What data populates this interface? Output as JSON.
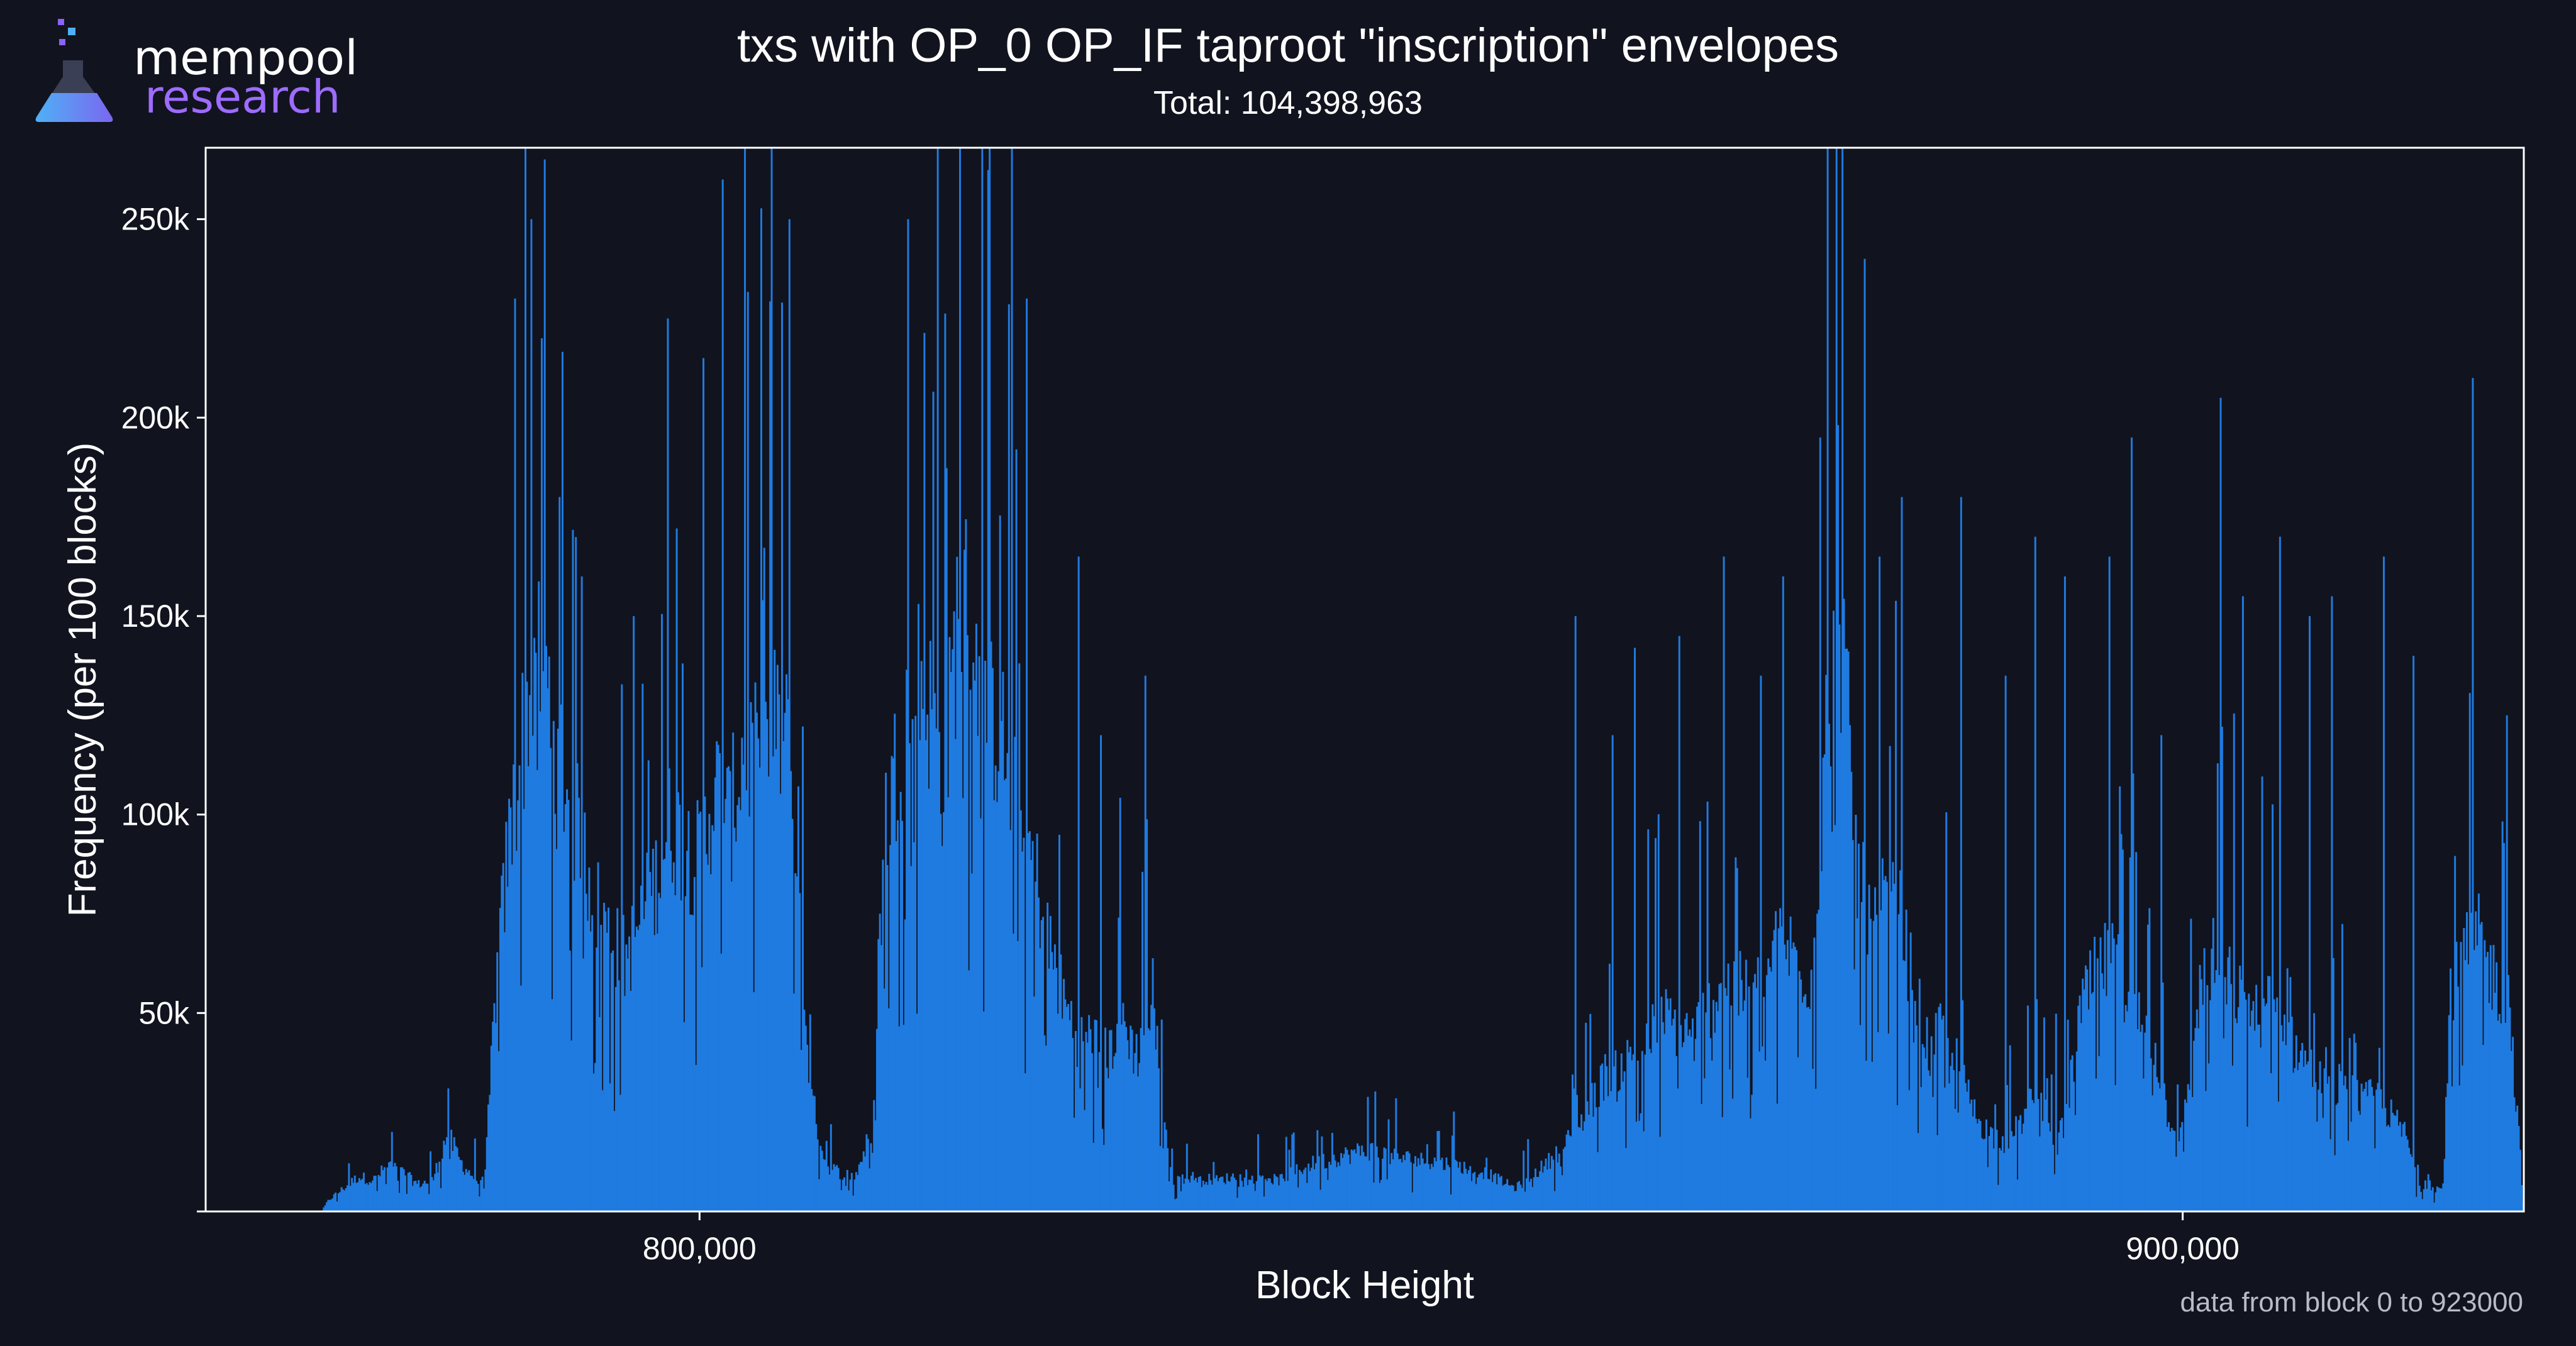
{
  "brand": {
    "line1": "mempool",
    "line2": "research"
  },
  "chart_data": {
    "type": "bar",
    "title": "txs with OP_0 OP_IF taproot \"inscription\" envelopes",
    "subtitle": "Total: 104,398,963",
    "xlabel": "Block Height",
    "ylabel": "Frequency (per 100 blocks)",
    "xlim": [
      766700,
      923000
    ],
    "ylim": [
      0,
      268000
    ],
    "xticks": [
      800000,
      900000
    ],
    "xtick_labels": [
      "800,000",
      "900,000"
    ],
    "yticks": [
      50000,
      100000,
      150000,
      200000,
      250000
    ],
    "ytick_labels": [
      "50k",
      "100k",
      "150k",
      "200k",
      "250k"
    ],
    "grid": false,
    "bin_width": 100,
    "color": "#1f7be0",
    "series_points": [
      [
        766700,
        0
      ],
      [
        774500,
        0
      ],
      [
        775000,
        3000
      ],
      [
        776000,
        6000
      ],
      [
        777000,
        9000
      ],
      [
        778000,
        8000
      ],
      [
        779000,
        12000
      ],
      [
        780000,
        10000
      ],
      [
        781000,
        7000
      ],
      [
        782000,
        8000
      ],
      [
        783000,
        20000
      ],
      [
        784000,
        12000
      ],
      [
        785500,
        6000
      ],
      [
        786200,
        55000
      ],
      [
        787000,
        90000
      ],
      [
        788000,
        120000
      ],
      [
        789000,
        150000
      ],
      [
        790000,
        130000
      ],
      [
        791000,
        110000
      ],
      [
        792000,
        95000
      ],
      [
        793000,
        80000
      ],
      [
        794000,
        70000
      ],
      [
        795000,
        65000
      ],
      [
        796000,
        75000
      ],
      [
        797000,
        85000
      ],
      [
        798000,
        100000
      ],
      [
        799000,
        95000
      ],
      [
        800000,
        90000
      ],
      [
        801000,
        110000
      ],
      [
        802000,
        100000
      ],
      [
        803000,
        120000
      ],
      [
        804000,
        115000
      ],
      [
        805000,
        125000
      ],
      [
        806000,
        120000
      ],
      [
        806800,
        70000
      ],
      [
        807500,
        30000
      ],
      [
        808500,
        12000
      ],
      [
        809500,
        10000
      ],
      [
        810500,
        9000
      ],
      [
        811500,
        20000
      ],
      [
        812500,
        100000
      ],
      [
        813500,
        120000
      ],
      [
        814500,
        140000
      ],
      [
        815500,
        130000
      ],
      [
        816500,
        110000
      ],
      [
        817500,
        160000
      ],
      [
        818500,
        150000
      ],
      [
        819500,
        130000
      ],
      [
        820500,
        120000
      ],
      [
        821500,
        100000
      ],
      [
        822500,
        90000
      ],
      [
        823500,
        70000
      ],
      [
        824500,
        55000
      ],
      [
        825500,
        45000
      ],
      [
        826500,
        45000
      ],
      [
        827500,
        40000
      ],
      [
        828500,
        50000
      ],
      [
        829500,
        40000
      ],
      [
        830000,
        50000
      ],
      [
        830800,
        45000
      ],
      [
        831800,
        8000
      ],
      [
        833000,
        9000
      ],
      [
        835000,
        8000
      ],
      [
        837000,
        10000
      ],
      [
        839000,
        8000
      ],
      [
        841000,
        12000
      ],
      [
        843000,
        14000
      ],
      [
        845000,
        16000
      ],
      [
        847000,
        14000
      ],
      [
        849000,
        13000
      ],
      [
        851000,
        12000
      ],
      [
        853000,
        10000
      ],
      [
        855000,
        6000
      ],
      [
        857000,
        12000
      ],
      [
        859000,
        20000
      ],
      [
        861000,
        35000
      ],
      [
        863000,
        40000
      ],
      [
        865000,
        50000
      ],
      [
        867000,
        45000
      ],
      [
        869000,
        60000
      ],
      [
        871000,
        55000
      ],
      [
        873000,
        70000
      ],
      [
        875000,
        60000
      ],
      [
        876000,
        130000
      ],
      [
        877000,
        150000
      ],
      [
        878000,
        90000
      ],
      [
        879000,
        70000
      ],
      [
        880000,
        80000
      ],
      [
        881000,
        75000
      ],
      [
        882000,
        55000
      ],
      [
        883000,
        40000
      ],
      [
        884000,
        50000
      ],
      [
        885000,
        35000
      ],
      [
        886000,
        25000
      ],
      [
        887000,
        20000
      ],
      [
        888000,
        18000
      ],
      [
        889000,
        22000
      ],
      [
        890000,
        30000
      ],
      [
        891000,
        25000
      ],
      [
        892000,
        20000
      ],
      [
        893000,
        50000
      ],
      [
        894000,
        60000
      ],
      [
        895000,
        65000
      ],
      [
        896000,
        60000
      ],
      [
        897000,
        50000
      ],
      [
        898000,
        45000
      ],
      [
        899000,
        25000
      ],
      [
        900000,
        20000
      ],
      [
        901000,
        55000
      ],
      [
        902000,
        65000
      ],
      [
        903000,
        60000
      ],
      [
        904000,
        55000
      ],
      [
        905000,
        50000
      ],
      [
        906000,
        55000
      ],
      [
        907000,
        45000
      ],
      [
        908000,
        40000
      ],
      [
        909000,
        35000
      ],
      [
        910000,
        30000
      ],
      [
        911000,
        35000
      ],
      [
        912000,
        28000
      ],
      [
        913000,
        30000
      ],
      [
        914000,
        25000
      ],
      [
        915000,
        20000
      ],
      [
        916000,
        6000
      ],
      [
        917500,
        6000
      ],
      [
        918000,
        55000
      ],
      [
        919000,
        65000
      ],
      [
        920000,
        70000
      ],
      [
        921000,
        60000
      ],
      [
        922000,
        55000
      ],
      [
        923000,
        0
      ]
    ],
    "spikes": [
      [
        787500,
        230000
      ],
      [
        788200,
        268000
      ],
      [
        788600,
        250000
      ],
      [
        789300,
        220000
      ],
      [
        790500,
        180000
      ],
      [
        792000,
        160000
      ],
      [
        795500,
        150000
      ],
      [
        797800,
        225000
      ],
      [
        800200,
        215000
      ],
      [
        801500,
        260000
      ],
      [
        803000,
        268000
      ],
      [
        804800,
        268000
      ],
      [
        806000,
        250000
      ],
      [
        814000,
        250000
      ],
      [
        816000,
        268000
      ],
      [
        817500,
        268000
      ],
      [
        819000,
        268000
      ],
      [
        821000,
        268000
      ],
      [
        822000,
        230000
      ],
      [
        825500,
        165000
      ],
      [
        827000,
        120000
      ],
      [
        830000,
        135000
      ],
      [
        859000,
        150000
      ],
      [
        861500,
        120000
      ],
      [
        863000,
        142000
      ],
      [
        866000,
        145000
      ],
      [
        869000,
        165000
      ],
      [
        871500,
        135000
      ],
      [
        873000,
        160000
      ],
      [
        875500,
        195000
      ],
      [
        876600,
        268000
      ],
      [
        878500,
        240000
      ],
      [
        879500,
        165000
      ],
      [
        881000,
        180000
      ],
      [
        885000,
        180000
      ],
      [
        888000,
        135000
      ],
      [
        890000,
        170000
      ],
      [
        892000,
        160000
      ],
      [
        895000,
        165000
      ],
      [
        896500,
        195000
      ],
      [
        898500,
        120000
      ],
      [
        902500,
        205000
      ],
      [
        904000,
        155000
      ],
      [
        906500,
        170000
      ],
      [
        908500,
        150000
      ],
      [
        910000,
        155000
      ],
      [
        913500,
        165000
      ],
      [
        915500,
        140000
      ],
      [
        919500,
        210000
      ],
      [
        921800,
        125000
      ]
    ]
  },
  "footnote": "data from block 0 to 923000"
}
